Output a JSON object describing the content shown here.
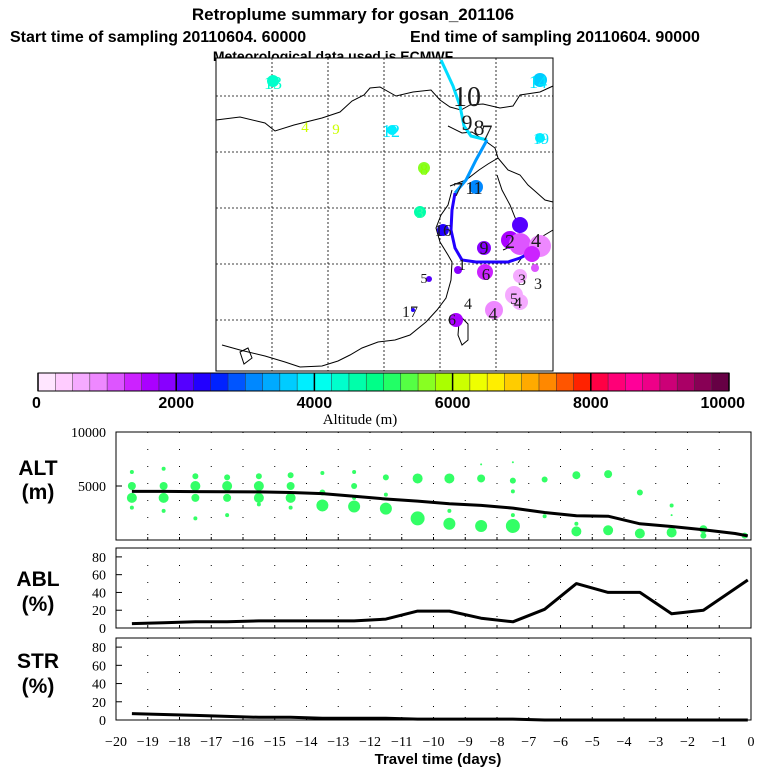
{
  "header": {
    "title": "Retroplume summary for gosan_201106",
    "start_label": "Start time of sampling 20110604. 60000",
    "end_label": "End time of sampling 20110604. 90000",
    "met_label": "Meteorological data used is ECMWF"
  },
  "map": {
    "labels": [
      {
        "text": "13",
        "color": "#00ffcc"
      },
      {
        "text": "14",
        "color": "#00e5ff"
      },
      {
        "text": "10",
        "color": "#1a1a1a"
      },
      {
        "text": "4",
        "color": "#ccff00"
      },
      {
        "text": "9",
        "color": "#ccff00"
      },
      {
        "text": "12",
        "color": "#00e5ff"
      },
      {
        "text": "9",
        "color": "#1a1a1a"
      },
      {
        "text": "8",
        "color": "#1a1a1a"
      },
      {
        "text": "7",
        "color": "#1a1a1a"
      },
      {
        "text": "19",
        "color": "#00e5ff"
      },
      {
        "text": "8",
        "color": "#88ff00"
      },
      {
        "text": "7",
        "color": "#1a1a1a"
      },
      {
        "text": "11",
        "color": "#1a1a1a"
      },
      {
        "text": "3",
        "color": "#33ffaa"
      },
      {
        "text": "16",
        "color": "#1a1a1a"
      },
      {
        "text": "5",
        "color": "#1a1a1a"
      },
      {
        "text": "9",
        "color": "#1a1a1a"
      },
      {
        "text": "2",
        "color": "#1a1a1a"
      },
      {
        "text": "1",
        "color": "#1a1a1a"
      },
      {
        "text": "6",
        "color": "#1a1a1a"
      },
      {
        "text": "3",
        "color": "#1a1a1a"
      },
      {
        "text": "3",
        "color": "#1a1a1a"
      },
      {
        "text": "4",
        "color": "#1a1a1a"
      },
      {
        "text": "5",
        "color": "#1a1a1a"
      },
      {
        "text": "17",
        "color": "#1a1a1a"
      },
      {
        "text": "4",
        "color": "#1a1a1a"
      },
      {
        "text": "6",
        "color": "#1a1a1a"
      },
      {
        "text": "4",
        "color": "#1a1a1a"
      },
      {
        "text": "4",
        "color": "#1a1a1a"
      }
    ]
  },
  "colorbar": {
    "ticks": [
      "0",
      "2000",
      "4000",
      "6000",
      "8000",
      "10000"
    ],
    "title": "Altitude (m)",
    "colors": [
      "#ffe6ff",
      "#ffccff",
      "#f5aaff",
      "#ee88ff",
      "#dd55ff",
      "#cc22ff",
      "#aa00ff",
      "#8800ff",
      "#5500ff",
      "#2200ff",
      "#0022ff",
      "#0055ff",
      "#0088ff",
      "#00aaff",
      "#00ccff",
      "#00eeff",
      "#00ffee",
      "#00ffcc",
      "#00ffaa",
      "#00ff88",
      "#22ff66",
      "#55ff44",
      "#88ff22",
      "#aaff00",
      "#ccff00",
      "#eeff00",
      "#ffee00",
      "#ffcc00",
      "#ffaa00",
      "#ff8800",
      "#ff5500",
      "#ff2200",
      "#ff0044",
      "#ff0077",
      "#ff0099",
      "#ee0088",
      "#cc0077",
      "#aa0066",
      "#880055",
      "#660044"
    ]
  },
  "panels": {
    "alt_label_1": "ALT",
    "alt_label_2": "(m)",
    "abl_label_1": "ABL",
    "abl_label_2": "(%)",
    "str_label_1": "STR",
    "str_label_2": "(%)"
  },
  "chart_data": [
    {
      "type": "line",
      "title": "ALT",
      "ylabel": "ALT (m)",
      "xlabel": "Travel time (days)",
      "xlim": [
        -20,
        0
      ],
      "ylim": [
        0,
        10000
      ],
      "yticks": [
        10000,
        5000,
        0
      ],
      "ytick_labels": [
        "10000",
        "5000",
        ""
      ],
      "x": [
        -19.5,
        -18.5,
        -17.5,
        -16.5,
        -15.5,
        -14.5,
        -13.5,
        -12.5,
        -11.5,
        -10.5,
        -9.5,
        -8.5,
        -7.5,
        -6.5,
        -5.5,
        -4.5,
        -3.5,
        -2.5,
        -1.5,
        -0.5,
        -0.1
      ],
      "series": [
        {
          "name": "mean altitude",
          "values": [
            4500,
            4500,
            4480,
            4470,
            4450,
            4400,
            4300,
            4050,
            3800,
            3600,
            3350,
            3200,
            2950,
            2550,
            2250,
            2200,
            1500,
            1250,
            950,
            600,
            380
          ]
        }
      ],
      "dots_green": [
        {
          "x": -19.5,
          "y": 5000,
          "s": 4
        },
        {
          "x": -19.5,
          "y": 3900,
          "s": 5
        },
        {
          "x": -19.5,
          "y": 6300,
          "s": 2
        },
        {
          "x": -19.5,
          "y": 3000,
          "s": 2
        },
        {
          "x": -18.5,
          "y": 5000,
          "s": 4
        },
        {
          "x": -18.5,
          "y": 3900,
          "s": 5
        },
        {
          "x": -18.5,
          "y": 6600,
          "s": 2
        },
        {
          "x": -18.5,
          "y": 2700,
          "s": 2
        },
        {
          "x": -17.5,
          "y": 5000,
          "s": 5
        },
        {
          "x": -17.5,
          "y": 3900,
          "s": 4
        },
        {
          "x": -17.5,
          "y": 5900,
          "s": 3
        },
        {
          "x": -17.5,
          "y": 2000,
          "s": 2
        },
        {
          "x": -16.5,
          "y": 5000,
          "s": 5
        },
        {
          "x": -16.5,
          "y": 3900,
          "s": 4
        },
        {
          "x": -16.5,
          "y": 5800,
          "s": 3
        },
        {
          "x": -16.5,
          "y": 2300,
          "s": 2
        },
        {
          "x": -15.5,
          "y": 5000,
          "s": 5
        },
        {
          "x": -15.5,
          "y": 3900,
          "s": 5
        },
        {
          "x": -15.5,
          "y": 5900,
          "s": 3
        },
        {
          "x": -15.5,
          "y": 3300,
          "s": 2
        },
        {
          "x": -14.5,
          "y": 5000,
          "s": 4
        },
        {
          "x": -14.5,
          "y": 3900,
          "s": 5
        },
        {
          "x": -14.5,
          "y": 6000,
          "s": 3
        },
        {
          "x": -14.5,
          "y": 3000,
          "s": 2
        },
        {
          "x": -13.5,
          "y": 4400,
          "s": 3
        },
        {
          "x": -13.5,
          "y": 3200,
          "s": 6
        },
        {
          "x": -13.5,
          "y": 6200,
          "s": 2
        },
        {
          "x": -12.5,
          "y": 5000,
          "s": 3
        },
        {
          "x": -12.5,
          "y": 3100,
          "s": 6
        },
        {
          "x": -12.5,
          "y": 6300,
          "s": 2
        },
        {
          "x": -12.5,
          "y": 3900,
          "s": 2
        },
        {
          "x": -11.5,
          "y": 5800,
          "s": 3
        },
        {
          "x": -11.5,
          "y": 2900,
          "s": 6
        },
        {
          "x": -11.5,
          "y": 4200,
          "s": 2
        },
        {
          "x": -10.5,
          "y": 5700,
          "s": 5
        },
        {
          "x": -10.5,
          "y": 2000,
          "s": 7
        },
        {
          "x": -9.5,
          "y": 5700,
          "s": 5
        },
        {
          "x": -9.5,
          "y": 1500,
          "s": 6
        },
        {
          "x": -9.5,
          "y": 2700,
          "s": 2
        },
        {
          "x": -8.5,
          "y": 5700,
          "s": 4
        },
        {
          "x": -8.5,
          "y": 1300,
          "s": 6
        },
        {
          "x": -8.5,
          "y": 7000,
          "s": 1
        },
        {
          "x": -7.5,
          "y": 5500,
          "s": 3
        },
        {
          "x": -7.5,
          "y": 1300,
          "s": 7
        },
        {
          "x": -7.5,
          "y": 7200,
          "s": 1
        },
        {
          "x": -7.5,
          "y": 4500,
          "s": 2
        },
        {
          "x": -7.5,
          "y": 2300,
          "s": 2
        },
        {
          "x": -6.5,
          "y": 5600,
          "s": 3
        },
        {
          "x": -6.5,
          "y": 2200,
          "s": 2
        },
        {
          "x": -5.5,
          "y": 6000,
          "s": 4
        },
        {
          "x": -5.5,
          "y": 800,
          "s": 5
        },
        {
          "x": -5.5,
          "y": 1500,
          "s": 2
        },
        {
          "x": -4.5,
          "y": 6100,
          "s": 4
        },
        {
          "x": -4.5,
          "y": 900,
          "s": 5
        },
        {
          "x": -3.5,
          "y": 4400,
          "s": 3
        },
        {
          "x": -3.5,
          "y": 600,
          "s": 5
        },
        {
          "x": -2.5,
          "y": 700,
          "s": 5
        },
        {
          "x": -2.5,
          "y": 3200,
          "s": 2
        },
        {
          "x": -2.5,
          "y": 2300,
          "s": 1
        },
        {
          "x": -1.5,
          "y": 1000,
          "s": 4
        },
        {
          "x": -1.5,
          "y": 400,
          "s": 3
        },
        {
          "x": -0.2,
          "y": 400,
          "s": 3
        }
      ]
    },
    {
      "type": "line",
      "title": "ABL",
      "ylabel": "ABL (%)",
      "xlim": [
        -20,
        0
      ],
      "ylim": [
        0,
        90
      ],
      "yticks": [
        0,
        20,
        40,
        60,
        80
      ],
      "x": [
        -19.5,
        -18.5,
        -17.5,
        -16.5,
        -15.5,
        -14.5,
        -13.5,
        -12.5,
        -11.5,
        -10.5,
        -9.5,
        -8.5,
        -7.5,
        -6.5,
        -5.5,
        -4.5,
        -3.5,
        -2.5,
        -1.5,
        -0.1
      ],
      "series": [
        {
          "name": "fraction in ABL",
          "values": [
            5,
            6,
            7,
            7,
            8,
            8,
            8,
            8,
            10,
            19,
            19,
            11,
            7,
            21,
            50,
            40,
            40,
            16,
            20,
            54
          ]
        }
      ]
    },
    {
      "type": "line",
      "title": "STR",
      "ylabel": "STR (%)",
      "xlabel": "Travel time (days)",
      "xlim": [
        -20,
        0
      ],
      "ylim": [
        0,
        90
      ],
      "yticks": [
        0,
        20,
        40,
        60,
        80
      ],
      "xticks": [
        -20,
        -19,
        -18,
        -17,
        -16,
        -15,
        -14,
        -13,
        -12,
        -11,
        -10,
        -9,
        -8,
        -7,
        -6,
        -5,
        -4,
        -3,
        -2,
        -1,
        0
      ],
      "x": [
        -19.5,
        -18.5,
        -17.5,
        -16.5,
        -15.5,
        -14.5,
        -13.5,
        -12.5,
        -11.5,
        -10.5,
        -9.5,
        -8.5,
        -7.5,
        -6.5,
        -5.5,
        -4.5,
        -3.5,
        -2.5,
        -1.5,
        -0.1
      ],
      "series": [
        {
          "name": "fraction in stratosphere",
          "values": [
            7,
            6,
            5,
            4,
            3,
            3,
            2,
            2,
            2,
            1,
            1,
            1,
            1,
            0,
            0,
            0,
            0,
            0,
            0,
            0
          ]
        }
      ]
    }
  ]
}
